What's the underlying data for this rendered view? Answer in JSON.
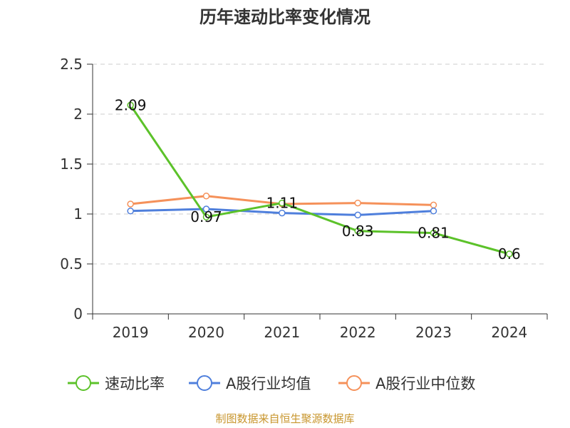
{
  "chart_data": {
    "type": "line",
    "title": "历年速动比率变化情况",
    "categories": [
      "2019",
      "2020",
      "2021",
      "2022",
      "2023",
      "2024"
    ],
    "ylim": [
      0,
      2.5
    ],
    "yticks": [
      "0",
      "0.5",
      "1",
      "1.5",
      "2",
      "2.5"
    ],
    "grid": true,
    "legend_position": "bottom",
    "series": [
      {
        "name": "速动比率",
        "color": "#5cc22a",
        "values": [
          2.09,
          0.97,
          1.11,
          0.83,
          0.81,
          0.6
        ],
        "labels": [
          "2.09",
          "0.97",
          "1.11",
          "0.83",
          "0.81",
          "0.6"
        ]
      },
      {
        "name": "A股行业均值",
        "color": "#4f7fdc",
        "values": [
          1.03,
          1.05,
          1.01,
          0.99,
          1.03,
          null
        ]
      },
      {
        "name": "A股行业中位数",
        "color": "#f5915a",
        "values": [
          1.1,
          1.18,
          1.1,
          1.11,
          1.09,
          null
        ]
      }
    ],
    "source": "制图数据来自恒生聚源数据库"
  }
}
